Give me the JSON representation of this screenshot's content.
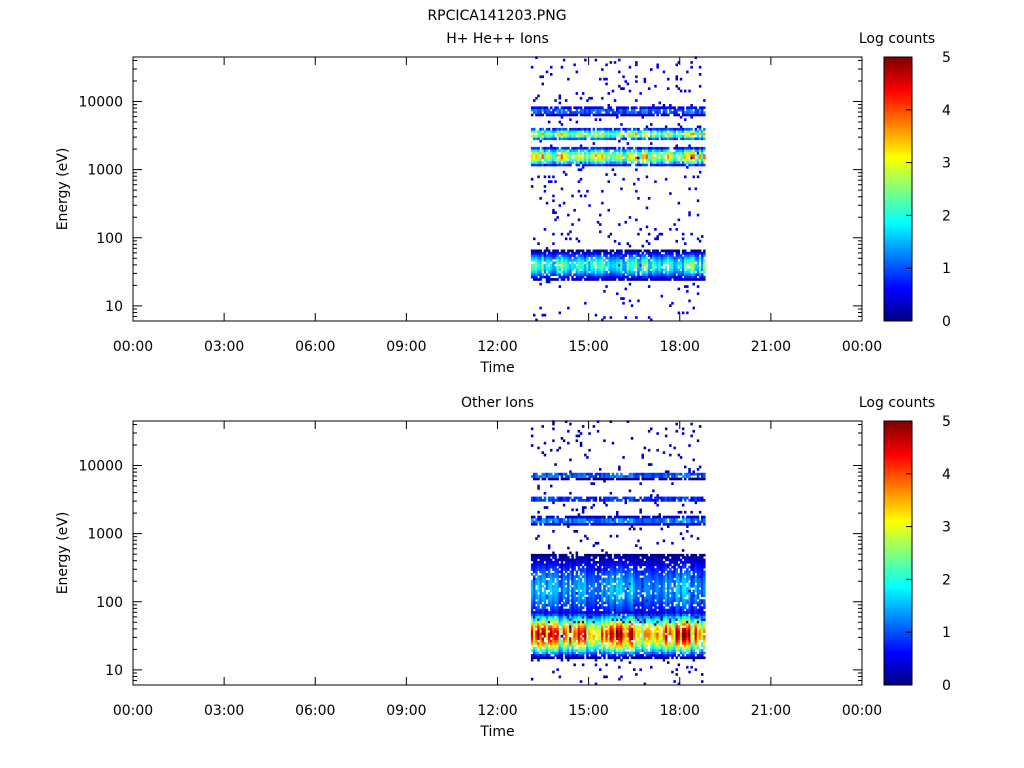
{
  "figure_title": "RPCICA141203.PNG",
  "chart_data": [
    {
      "type": "heatmap",
      "title": "H+ He++ Ions",
      "xlabel": "Time",
      "ylabel": "Energy (eV)",
      "x_ticks": [
        "00:00",
        "03:00",
        "06:00",
        "09:00",
        "12:00",
        "15:00",
        "18:00",
        "21:00",
        "00:00"
      ],
      "xlim_hours": [
        0,
        24
      ],
      "y_scale": "log",
      "y_ticks": [
        10,
        100,
        1000,
        10000
      ],
      "y_tick_labels": [
        "10",
        "100",
        "1000",
        "10000"
      ],
      "ylim": [
        6,
        45000
      ],
      "colorbar": {
        "label": "Log counts",
        "range": [
          0,
          5
        ],
        "ticks": [
          "0",
          "1",
          "2",
          "3",
          "4",
          "5"
        ]
      },
      "data_time_range_hours": [
        13.1,
        18.8
      ],
      "bands": [
        {
          "energy_range_eV": [
            25,
            60
          ],
          "peak_energy_eV": 38,
          "peak_log_counts": 2.5
        },
        {
          "energy_range_eV": [
            1100,
            2000
          ],
          "peak_energy_eV": 1500,
          "peak_log_counts": 3.6
        },
        {
          "energy_range_eV": [
            2600,
            3800
          ],
          "peak_energy_eV": 3200,
          "peak_log_counts": 3.3
        },
        {
          "energy_range_eV": [
            6000,
            8000
          ],
          "peak_energy_eV": 7000,
          "peak_log_counts": 1.5
        }
      ],
      "sparse_background_log_counts": 0.3
    },
    {
      "type": "heatmap",
      "title": "Other Ions",
      "xlabel": "Time",
      "ylabel": "Energy (eV)",
      "x_ticks": [
        "00:00",
        "03:00",
        "06:00",
        "09:00",
        "12:00",
        "15:00",
        "18:00",
        "21:00",
        "00:00"
      ],
      "xlim_hours": [
        0,
        24
      ],
      "y_scale": "log",
      "y_ticks": [
        10,
        100,
        1000,
        10000
      ],
      "y_tick_labels": [
        "10",
        "100",
        "1000",
        "10000"
      ],
      "ylim": [
        6,
        45000
      ],
      "colorbar": {
        "label": "Log counts",
        "range": [
          0,
          5
        ],
        "ticks": [
          "0",
          "1",
          "2",
          "3",
          "4",
          "5"
        ]
      },
      "data_time_range_hours": [
        13.1,
        18.8
      ],
      "bands": [
        {
          "energy_range_eV": [
            20,
            80
          ],
          "peak_energy_eV": 32,
          "peak_log_counts": 4.6
        },
        {
          "energy_range_eV": [
            80,
            600
          ],
          "peak_energy_eV": 150,
          "peak_log_counts": 1.6
        },
        {
          "energy_range_eV": [
            1300,
            1700
          ],
          "peak_energy_eV": 1500,
          "peak_log_counts": 1.6
        },
        {
          "energy_range_eV": [
            2800,
            3400
          ],
          "peak_energy_eV": 3100,
          "peak_log_counts": 1.2
        },
        {
          "energy_range_eV": [
            6200,
            7600
          ],
          "peak_energy_eV": 6900,
          "peak_log_counts": 1.5
        }
      ],
      "sparse_background_log_counts": 0.2
    }
  ]
}
